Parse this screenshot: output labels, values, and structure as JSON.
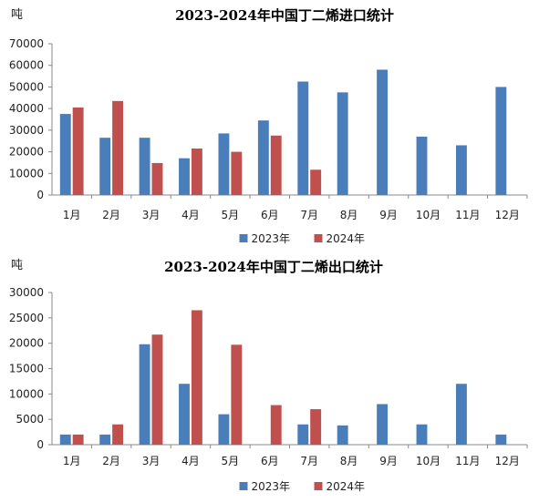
{
  "colors": {
    "y2023": "#4a7ebb",
    "y2024": "#c0504d",
    "axis": "#888888",
    "text": "#222222"
  },
  "chart_data": [
    {
      "type": "bar",
      "title": "2023-2024年中国丁二烯进口统计",
      "ylabel": "吨",
      "xlabel": "",
      "categories": [
        "1月",
        "2月",
        "3月",
        "4月",
        "5月",
        "6月",
        "7月",
        "8月",
        "9月",
        "10月",
        "11月",
        "12月"
      ],
      "ylim": [
        0,
        70000
      ],
      "yticks": [
        "0",
        "10000",
        "20000",
        "30000",
        "40000",
        "50000",
        "60000",
        "70000"
      ],
      "grid": false,
      "legend": "bottom",
      "series": [
        {
          "name": "2023年",
          "values": [
            37500,
            26500,
            26500,
            17000,
            28500,
            34500,
            52500,
            47500,
            58000,
            27000,
            23000,
            50000
          ]
        },
        {
          "name": "2024年",
          "values": [
            40500,
            43500,
            14800,
            21500,
            20000,
            27500,
            11700,
            null,
            null,
            null,
            null,
            null
          ]
        }
      ]
    },
    {
      "type": "bar",
      "title": "2023-2024年中国丁二烯出口统计",
      "ylabel": "吨",
      "xlabel": "",
      "categories": [
        "1月",
        "2月",
        "3月",
        "4月",
        "5月",
        "6月",
        "7月",
        "8月",
        "9月",
        "10月",
        "11月",
        "12月"
      ],
      "ylim": [
        0,
        30000
      ],
      "yticks": [
        "0",
        "5000",
        "10000",
        "15000",
        "20000",
        "25000",
        "30000"
      ],
      "grid": false,
      "legend": "bottom",
      "series": [
        {
          "name": "2023年",
          "values": [
            2000,
            2000,
            19800,
            12000,
            6000,
            null,
            4000,
            3800,
            8000,
            4000,
            12000,
            2000
          ]
        },
        {
          "name": "2024年",
          "values": [
            2000,
            4000,
            21700,
            26500,
            19700,
            7800,
            7000,
            null,
            null,
            null,
            null,
            null
          ]
        }
      ]
    }
  ]
}
